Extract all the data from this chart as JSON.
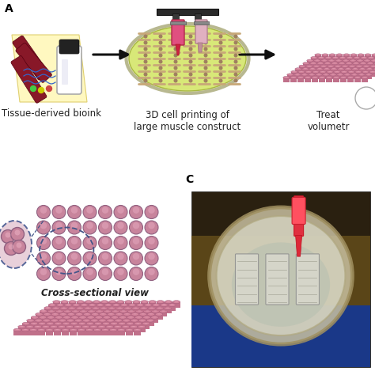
{
  "bg_color": "#ffffff",
  "label1": "Tissue-derived bioink",
  "label2": "3D cell printing of\nlarge muscle construct",
  "label3": "Treat\nvolumetr",
  "label_cross": "Cross-sectional view",
  "cyl_pink": "#d4849c",
  "cyl_dark": "#a05878",
  "cyl_light": "#ebb0c4",
  "cyl_side": "#c0708a",
  "cross_fill": "#c8849c",
  "cross_edge": "#906080",
  "petri_fill": "#d8e878",
  "petri_edge": "#a8b840",
  "petri_rim": "#c8c860",
  "strand_color": "#c8a878",
  "muscle_color": "#881828",
  "text_color": "#222222",
  "arrow_color": "#111111",
  "font_size": 8.0,
  "dpi": 100,
  "figsize": [
    4.74,
    4.74
  ]
}
